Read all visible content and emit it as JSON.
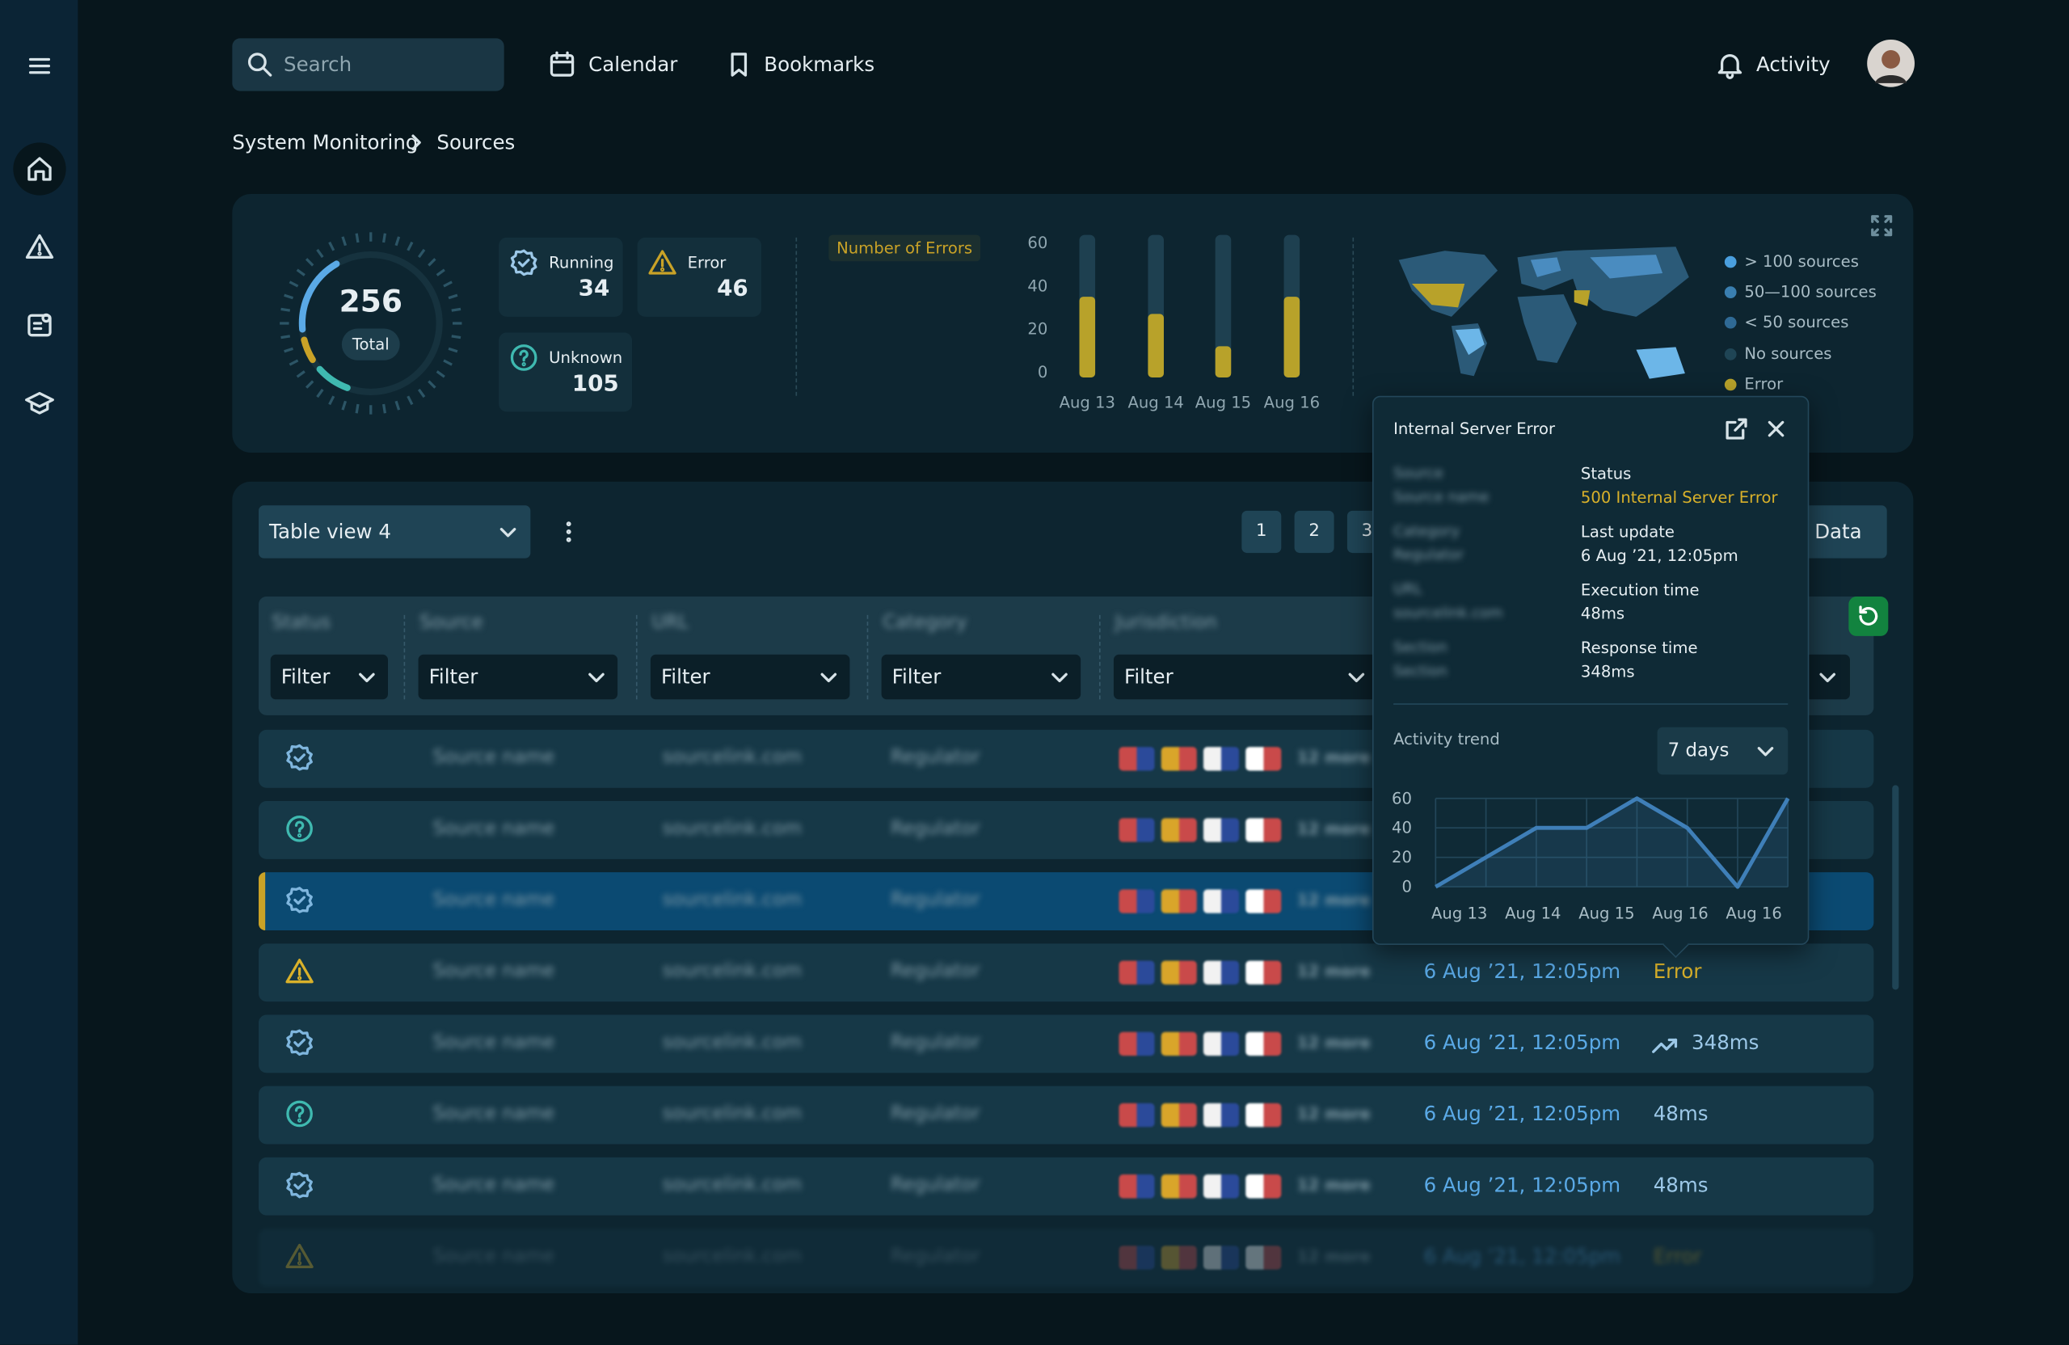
{
  "nav": {
    "search": "Search",
    "calendar": "Calendar",
    "bookmarks": "Bookmarks",
    "activity": "Activity"
  },
  "breadcrumb": [
    "System Monitoring",
    "Sources"
  ],
  "summary": {
    "total": 256,
    "total_label": "Total",
    "cards": [
      {
        "label": "Running",
        "value": 34
      },
      {
        "label": "Error",
        "value": 46
      },
      {
        "label": "Unknown",
        "value": 105
      }
    ]
  },
  "errors_chart": {
    "title": "Number of Errors",
    "categories": [
      "Aug 13",
      "Aug 14",
      "Aug 15",
      "Aug 16"
    ],
    "values": [
      35,
      27,
      12,
      35
    ],
    "ylim": [
      0,
      60
    ],
    "yticks": [
      0,
      20,
      40,
      60
    ]
  },
  "map_legend": [
    "> 100 sources",
    "50—100 sources",
    "< 50 sources",
    "No sources",
    "Error"
  ],
  "table_view": "Table view 4",
  "pages": [
    1,
    2,
    3
  ],
  "export": "Export Data",
  "columns": [
    {
      "name": "Status",
      "filter": "Filter"
    },
    {
      "name": "Source",
      "filter": "Filter"
    },
    {
      "name": "URL",
      "filter": "Filter"
    },
    {
      "name": "Category",
      "filter": "Filter"
    },
    {
      "name": "Jurisdiction",
      "filter": "Filter"
    }
  ],
  "rows": [
    {
      "source": "Source name",
      "url": "sourcelink.com",
      "category": "Regulator",
      "more": "12 more"
    },
    {
      "source": "Source name",
      "url": "sourcelink.com",
      "category": "Regulator",
      "more": "12 more"
    },
    {
      "source": "Source name",
      "url": "sourcelink.com",
      "category": "Regulator",
      "more": "12 more"
    },
    {
      "source": "Source name",
      "url": "sourcelink.com",
      "category": "Regulator",
      "more": "12 more",
      "updated": "6 Aug ’21, 12:05pm",
      "value": "Error"
    },
    {
      "source": "Source name",
      "url": "sourcelink.com",
      "category": "Regulator",
      "more": "12 more",
      "updated": "6 Aug ’21, 12:05pm",
      "value": "348ms"
    },
    {
      "source": "Source name",
      "url": "sourcelink.com",
      "category": "Regulator",
      "more": "12 more",
      "updated": "6 Aug ’21, 12:05pm",
      "value": "48ms"
    },
    {
      "source": "Source name",
      "url": "sourcelink.com",
      "category": "Regulator",
      "more": "12 more",
      "updated": "6 Aug ’21, 12:05pm",
      "value": "48ms"
    },
    {
      "source": "Source name",
      "url": "sourcelink.com",
      "category": "Regulator",
      "more": "12 more",
      "updated": "6 Aug ’21, 12:05pm",
      "value": "Error"
    }
  ],
  "popup": {
    "title": "Internal Server Error",
    "left": [
      {
        "label": "Source",
        "value": "Source name"
      },
      {
        "label": "Category",
        "value": "Regulator"
      },
      {
        "label": "URL",
        "value": "sourcelink.com"
      },
      {
        "label": "Section",
        "value": "Section"
      }
    ],
    "right": [
      {
        "label": "Status",
        "value": "500 Internal Server Error"
      },
      {
        "label": "Last update",
        "value": "6 Aug ’21, 12:05pm"
      },
      {
        "label": "Execution time",
        "value": "48ms"
      },
      {
        "label": "Response time",
        "value": "348ms"
      }
    ],
    "trend": {
      "title": "Activity trend",
      "range": "7 days",
      "x_labels": [
        "Aug 13",
        "Aug 14",
        "Aug 15",
        "Aug 16",
        "Aug 16"
      ],
      "values": [
        0,
        20,
        40,
        40,
        60,
        40,
        0,
        60
      ],
      "ylim": [
        0,
        60
      ],
      "yticks": [
        0,
        20,
        40,
        60
      ]
    }
  }
}
